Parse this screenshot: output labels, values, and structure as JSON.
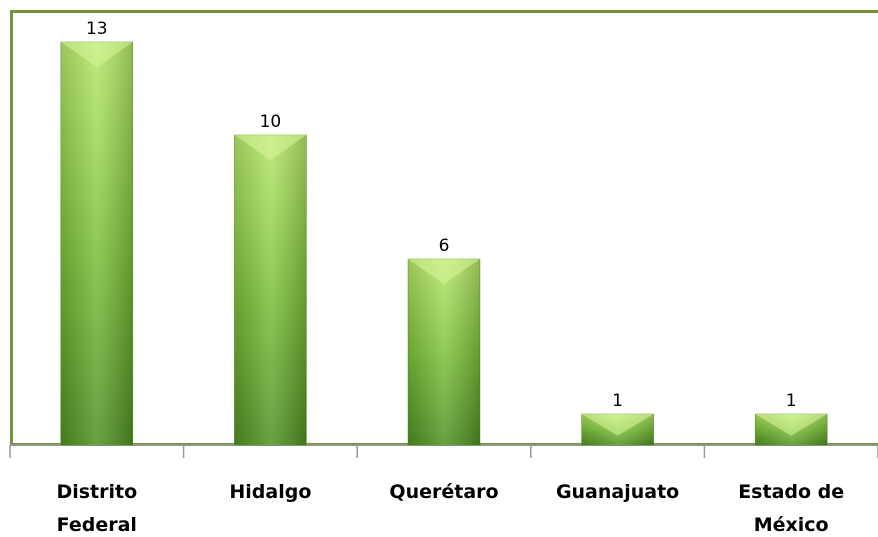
{
  "chart_data": {
    "type": "bar",
    "categories": [
      "Distrito Federal",
      "Hidalgo",
      "Querétaro",
      "Guanajuato",
      "Estado de México"
    ],
    "values": [
      13,
      10,
      6,
      1,
      1
    ],
    "color": "#7dc13a",
    "ylim": [
      0,
      14
    ]
  }
}
